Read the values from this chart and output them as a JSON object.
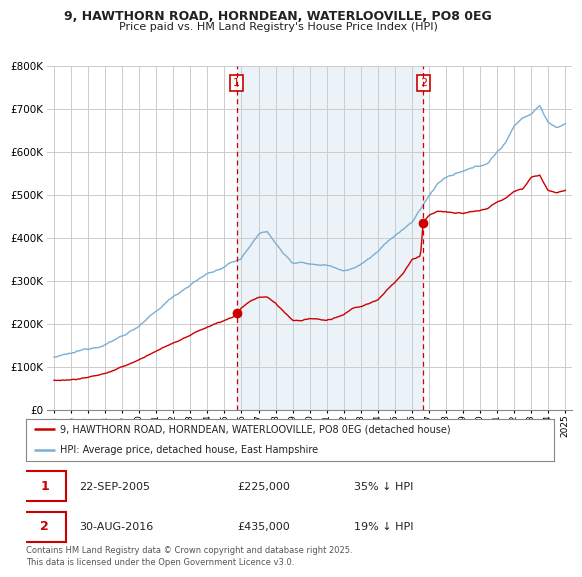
{
  "title_line1": "9, HAWTHORN ROAD, HORNDEAN, WATERLOOVILLE, PO8 0EG",
  "title_line2": "Price paid vs. HM Land Registry's House Price Index (HPI)",
  "ylim": [
    0,
    800000
  ],
  "yticks": [
    0,
    100000,
    200000,
    300000,
    400000,
    500000,
    600000,
    700000,
    800000
  ],
  "ytick_labels": [
    "£0",
    "£100K",
    "£200K",
    "£300K",
    "£400K",
    "£500K",
    "£600K",
    "£700K",
    "£800K"
  ],
  "hpi_color": "#7bafd4",
  "hpi_fill_color": "#c8dff0",
  "price_color": "#cc0000",
  "vline_color": "#cc0000",
  "transaction1_x": 2005.72,
  "transaction1_y": 225000,
  "transaction2_x": 2016.66,
  "transaction2_y": 435000,
  "transaction1_date": "22-SEP-2005",
  "transaction1_price": 225000,
  "transaction1_pct": "35% ↓ HPI",
  "transaction2_date": "30-AUG-2016",
  "transaction2_price": 435000,
  "transaction2_pct": "19% ↓ HPI",
  "legend_label_price": "9, HAWTHORN ROAD, HORNDEAN, WATERLOOVILLE, PO8 0EG (detached house)",
  "legend_label_hpi": "HPI: Average price, detached house, East Hampshire",
  "footnote": "Contains HM Land Registry data © Crown copyright and database right 2025.\nThis data is licensed under the Open Government Licence v3.0.",
  "background_color": "#ffffff",
  "grid_color": "#cccccc",
  "xmin": 1995,
  "xmax": 2025,
  "hpi_knots_x": [
    1995,
    1996,
    1997,
    1998,
    1999,
    2000,
    2001,
    2002,
    2003,
    2004,
    2005,
    2006,
    2007,
    2007.5,
    2008,
    2008.5,
    2009,
    2009.5,
    2010,
    2011,
    2012,
    2013,
    2014,
    2015,
    2016,
    2017,
    2017.5,
    2018,
    2019,
    2020,
    2020.5,
    2021,
    2021.5,
    2022,
    2022.5,
    2023,
    2023.5,
    2024,
    2024.5,
    2025
  ],
  "hpi_knots_y": [
    120000,
    125000,
    135000,
    150000,
    170000,
    195000,
    225000,
    260000,
    290000,
    315000,
    330000,
    350000,
    405000,
    415000,
    385000,
    360000,
    340000,
    345000,
    340000,
    340000,
    330000,
    345000,
    375000,
    410000,
    440000,
    500000,
    530000,
    545000,
    555000,
    565000,
    575000,
    600000,
    620000,
    660000,
    680000,
    690000,
    710000,
    670000,
    660000,
    665000
  ],
  "price_knots_x": [
    1995,
    1996,
    1997,
    1998,
    1999,
    2000,
    2001,
    2002,
    2003,
    2004,
    2005,
    2005.5,
    2005.72,
    2006,
    2006.5,
    2007,
    2007.5,
    2008,
    2008.5,
    2009,
    2009.5,
    2010,
    2011,
    2011.5,
    2012,
    2012.5,
    2013,
    2014,
    2015,
    2015.5,
    2016,
    2016.5,
    2016.66,
    2017,
    2017.5,
    2018,
    2018.5,
    2019,
    2019.5,
    2020,
    2020.5,
    2021,
    2021.5,
    2022,
    2022.5,
    2023,
    2023.5,
    2024,
    2024.5,
    2025
  ],
  "price_knots_y": [
    70000,
    72000,
    78000,
    88000,
    100000,
    118000,
    138000,
    158000,
    175000,
    195000,
    210000,
    218000,
    225000,
    240000,
    255000,
    265000,
    265000,
    250000,
    230000,
    210000,
    210000,
    215000,
    210000,
    215000,
    220000,
    235000,
    240000,
    255000,
    295000,
    315000,
    345000,
    355000,
    435000,
    450000,
    460000,
    460000,
    455000,
    455000,
    460000,
    460000,
    465000,
    480000,
    490000,
    505000,
    510000,
    540000,
    545000,
    510000,
    505000,
    510000
  ]
}
